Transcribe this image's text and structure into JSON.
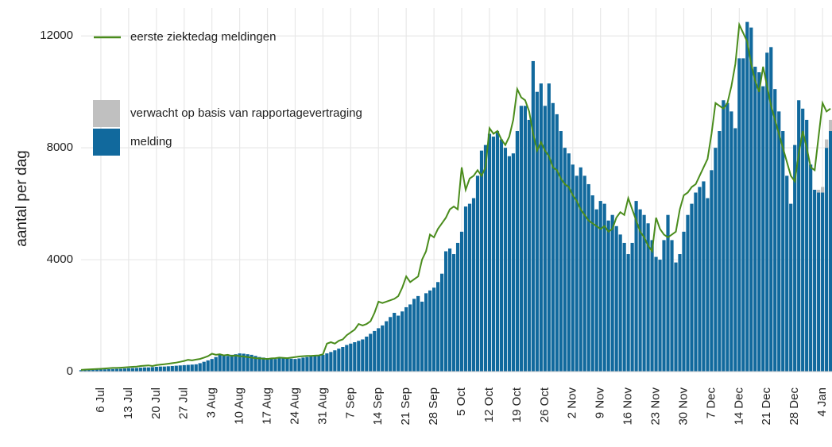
{
  "chart_data": {
    "type": "bar",
    "y_label": "aantal per dag",
    "categories": [
      null,
      null,
      null,
      null,
      null,
      "6 Jul",
      null,
      null,
      null,
      null,
      null,
      null,
      "13 Jul",
      null,
      null,
      null,
      null,
      null,
      null,
      "20 Jul",
      null,
      null,
      null,
      null,
      null,
      null,
      "27 Jul",
      null,
      null,
      null,
      null,
      null,
      null,
      "3 Aug",
      null,
      null,
      null,
      null,
      null,
      null,
      "10 Aug",
      null,
      null,
      null,
      null,
      null,
      null,
      "17 Aug",
      null,
      null,
      null,
      null,
      null,
      null,
      "24 Aug",
      null,
      null,
      null,
      null,
      null,
      null,
      "31 Aug",
      null,
      null,
      null,
      null,
      null,
      null,
      "7 Sep",
      null,
      null,
      null,
      null,
      null,
      null,
      "14 Sep",
      null,
      null,
      null,
      null,
      null,
      null,
      "21 Sep",
      null,
      null,
      null,
      null,
      null,
      null,
      "28 Sep",
      null,
      null,
      null,
      null,
      null,
      null,
      "5 Oct",
      null,
      null,
      null,
      null,
      null,
      null,
      "12 Oct",
      null,
      null,
      null,
      null,
      null,
      null,
      "19 Oct",
      null,
      null,
      null,
      null,
      null,
      null,
      "26 Oct",
      null,
      null,
      null,
      null,
      null,
      null,
      "2 Nov",
      null,
      null,
      null,
      null,
      null,
      null,
      "9 Nov",
      null,
      null,
      null,
      null,
      null,
      null,
      "16 Nov",
      null,
      null,
      null,
      null,
      null,
      null,
      "23 Nov",
      null,
      null,
      null,
      null,
      null,
      null,
      "30 Nov",
      null,
      null,
      null,
      null,
      null,
      null,
      "7 Dec",
      null,
      null,
      null,
      null,
      null,
      null,
      "14 Dec",
      null,
      null,
      null,
      null,
      null,
      null,
      "21 Dec",
      null,
      null,
      null,
      null,
      null,
      null,
      "28 Dec",
      null,
      null,
      null,
      null,
      null,
      null,
      "4 Jan",
      null,
      null
    ],
    "series": [
      {
        "name": "eerste ziektedag meldingen",
        "kind": "line",
        "color": "#4a8c1c",
        "values": [
          60,
          70,
          80,
          85,
          90,
          100,
          110,
          120,
          130,
          130,
          140,
          150,
          160,
          170,
          180,
          200,
          210,
          220,
          200,
          230,
          250,
          260,
          280,
          300,
          320,
          350,
          380,
          420,
          400,
          430,
          450,
          500,
          550,
          640,
          600,
          620,
          580,
          600,
          560,
          580,
          550,
          540,
          520,
          500,
          480,
          470,
          460,
          450,
          470,
          480,
          500,
          490,
          480,
          500,
          520,
          540,
          550,
          560,
          560,
          570,
          580,
          620,
          1000,
          1050,
          1000,
          1100,
          1150,
          1300,
          1400,
          1500,
          1700,
          1650,
          1700,
          1800,
          2100,
          2500,
          2450,
          2500,
          2550,
          2600,
          2700,
          3000,
          3400,
          3200,
          3300,
          3400,
          4000,
          4300,
          4900,
          4800,
          5100,
          5300,
          5500,
          5800,
          5900,
          5800,
          7300,
          6500,
          6900,
          7000,
          7200,
          7000,
          7300,
          8700,
          8500,
          8600,
          8300,
          8100,
          8400,
          9000,
          10100,
          9800,
          9700,
          9300,
          8500,
          7900,
          8200,
          7900,
          7700,
          7300,
          7200,
          6900,
          6700,
          6600,
          6300,
          6100,
          5800,
          5600,
          5400,
          5300,
          5200,
          5100,
          5200,
          5000,
          5100,
          5500,
          5700,
          5600,
          6200,
          5800,
          5400,
          5000,
          4800,
          4500,
          4300,
          5500,
          5100,
          4900,
          4800,
          4900,
          5000,
          5800,
          6300,
          6400,
          6600,
          6700,
          7000,
          7300,
          7600,
          8500,
          9600,
          9500,
          9400,
          9600,
          10200,
          11000,
          12400,
          12100,
          11800,
          11000,
          10400,
          10000,
          10900,
          10200,
          9500,
          9000,
          8500,
          8000,
          7500,
          7000,
          6800,
          7800,
          8600,
          8000,
          7300,
          7200,
          8400,
          9600,
          9300,
          9400
        ]
      },
      {
        "name": "verwacht op basis van rapportagevertraging",
        "kind": "stack",
        "color": "#c0c0c0",
        "values": [
          null,
          null,
          null,
          null,
          null,
          null,
          null,
          null,
          null,
          null,
          null,
          null,
          null,
          null,
          null,
          null,
          null,
          null,
          null,
          null,
          null,
          null,
          null,
          null,
          null,
          null,
          null,
          null,
          null,
          null,
          null,
          null,
          null,
          null,
          null,
          null,
          null,
          null,
          null,
          null,
          null,
          null,
          null,
          null,
          null,
          null,
          null,
          null,
          null,
          null,
          null,
          null,
          null,
          null,
          null,
          null,
          null,
          null,
          null,
          null,
          null,
          null,
          null,
          null,
          null,
          null,
          null,
          null,
          null,
          null,
          null,
          null,
          null,
          null,
          null,
          null,
          null,
          null,
          null,
          null,
          null,
          null,
          null,
          null,
          null,
          null,
          null,
          null,
          null,
          null,
          null,
          null,
          null,
          null,
          null,
          null,
          null,
          null,
          null,
          null,
          null,
          null,
          null,
          null,
          null,
          null,
          null,
          null,
          null,
          null,
          null,
          null,
          null,
          null,
          null,
          null,
          null,
          null,
          null,
          null,
          null,
          null,
          null,
          null,
          null,
          null,
          null,
          null,
          null,
          null,
          null,
          null,
          null,
          null,
          null,
          null,
          null,
          null,
          null,
          null,
          null,
          null,
          null,
          null,
          null,
          null,
          null,
          null,
          null,
          null,
          null,
          null,
          null,
          null,
          null,
          null,
          null,
          null,
          null,
          null,
          null,
          null,
          null,
          null,
          null,
          null,
          null,
          null,
          null,
          null,
          null,
          null,
          null,
          null,
          null,
          null,
          null,
          null,
          null,
          null,
          null,
          null,
          null,
          null,
          null,
          null,
          100,
          200,
          300,
          400
        ]
      },
      {
        "name": "melding",
        "kind": "bar",
        "color": "#11699d",
        "values": [
          50,
          55,
          60,
          60,
          70,
          75,
          80,
          85,
          90,
          95,
          100,
          110,
          120,
          125,
          130,
          140,
          150,
          150,
          160,
          170,
          180,
          180,
          190,
          200,
          210,
          220,
          230,
          240,
          250,
          260,
          300,
          350,
          400,
          450,
          520,
          600,
          580,
          560,
          600,
          620,
          650,
          640,
          620,
          600,
          560,
          520,
          500,
          480,
          460,
          450,
          470,
          480,
          470,
          460,
          450,
          470,
          500,
          520,
          540,
          560,
          580,
          600,
          650,
          700,
          760,
          820,
          880,
          950,
          1000,
          1050,
          1100,
          1150,
          1250,
          1350,
          1450,
          1550,
          1650,
          1800,
          1950,
          2100,
          2000,
          2150,
          2300,
          2400,
          2600,
          2700,
          2500,
          2800,
          2900,
          3000,
          3200,
          3500,
          4300,
          4400,
          4200,
          4600,
          5000,
          5900,
          6000,
          6200,
          7000,
          7900,
          8100,
          8500,
          8400,
          8600,
          8300,
          8000,
          7700,
          7800,
          8600,
          9500,
          9500,
          9000,
          11100,
          10000,
          10300,
          9500,
          10300,
          9600,
          9200,
          8600,
          8000,
          7800,
          7400,
          7000,
          7300,
          7000,
          6700,
          6300,
          5800,
          6100,
          6000,
          5400,
          5600,
          5200,
          4900,
          4600,
          4200,
          4600,
          6100,
          5800,
          5600,
          5300,
          4700,
          4100,
          4000,
          4700,
          5600,
          4700,
          3900,
          4200,
          5000,
          5600,
          6000,
          6400,
          6600,
          6800,
          6200,
          7200,
          8000,
          8600,
          9700,
          9600,
          9300,
          8700,
          11200,
          11200,
          12500,
          12300,
          10900,
          10700,
          10200,
          11400,
          11600,
          10100,
          9300,
          8600,
          7000,
          6000,
          8100,
          9700,
          9400,
          9000,
          7400,
          6500,
          6400,
          6400,
          8000,
          8600
        ]
      }
    ],
    "ylim": [
      0,
      13000
    ],
    "yticks": [
      0,
      4000,
      8000,
      12000
    ],
    "grid": true,
    "legend": "top-left"
  }
}
